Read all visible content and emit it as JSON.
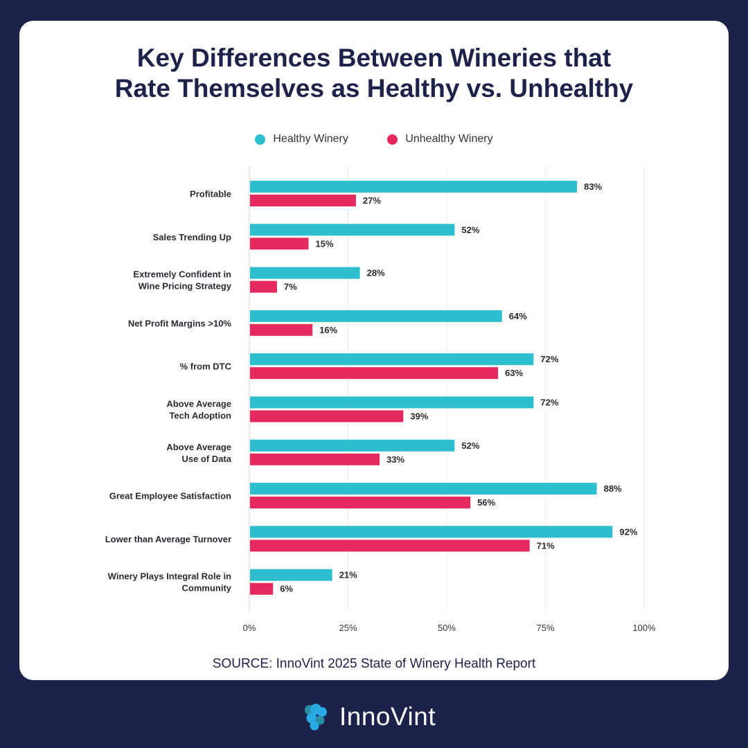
{
  "title_lines": [
    "Key Differences Between Wineries that",
    "Rate Themselves as Healthy vs. Unhealthy"
  ],
  "source": "SOURCE: InnoVint 2025 State of Winery Health Report",
  "brand": {
    "name": "InnoVint",
    "icon": "grape-cluster-icon"
  },
  "colors": {
    "background": "#1d224a",
    "healthy": "#2ebfcf",
    "unhealthy": "#e5295e"
  },
  "chart_data": {
    "type": "bar",
    "orientation": "horizontal",
    "categories": [
      [
        "Profitable"
      ],
      [
        "Sales Trending Up"
      ],
      [
        "Extremely Confident in",
        "Wine Pricing Strategy"
      ],
      [
        "Net Profit Margins >10%"
      ],
      [
        "% from DTC"
      ],
      [
        "Above Average",
        "Tech Adoption"
      ],
      [
        "Above Average",
        "Use of Data"
      ],
      [
        "Great Employee Satisfaction"
      ],
      [
        "Lower than Average Turnover"
      ],
      [
        "Winery Plays Integral Role in",
        "Community"
      ]
    ],
    "series": [
      {
        "name": "Healthy Winery",
        "color": "#2ebfcf",
        "values": [
          83,
          52,
          28,
          64,
          72,
          72,
          52,
          88,
          92,
          21
        ]
      },
      {
        "name": "Unhealthy Winery",
        "color": "#e5295e",
        "values": [
          27,
          15,
          7,
          16,
          63,
          39,
          33,
          56,
          71,
          6
        ]
      }
    ],
    "xlim": [
      0,
      100
    ],
    "xticks": [
      "0%",
      "25%",
      "50%",
      "75%",
      "100%"
    ],
    "grid": true,
    "legend": "top-center",
    "value_suffix": "%"
  }
}
